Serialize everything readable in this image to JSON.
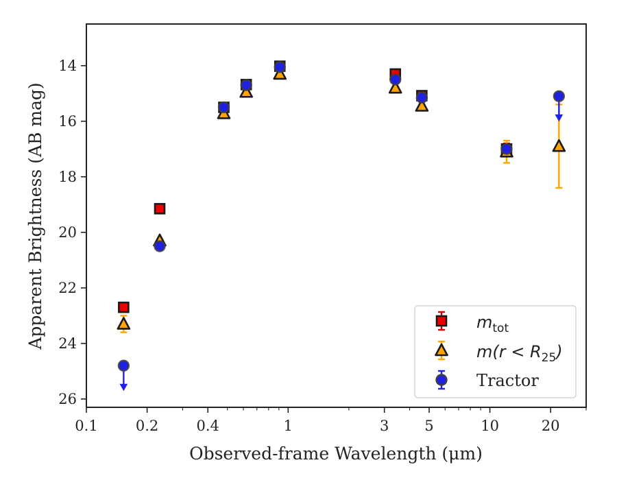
{
  "chart_data": {
    "type": "scatter",
    "title": "",
    "xlabel": "Observed-frame Wavelength (μm)",
    "ylabel": "Apparent Brightness (AB mag)",
    "x_scale": "log",
    "xlim": [
      0.1,
      30
    ],
    "ylim": [
      26.3,
      12.5
    ],
    "y_inverted": true,
    "x_ticks": [
      0.1,
      0.2,
      0.4,
      1,
      3,
      5,
      10,
      20
    ],
    "x_tick_labels": [
      "0.1",
      "0.2",
      "0.4",
      "1",
      "3",
      "5",
      "10",
      "20"
    ],
    "y_ticks": [
      14,
      16,
      18,
      20,
      22,
      24,
      26
    ],
    "y_tick_labels": [
      "14",
      "16",
      "18",
      "20",
      "22",
      "24",
      "26"
    ],
    "grid": false,
    "legend_position": "lower-right",
    "series": [
      {
        "name": "m_tot",
        "marker": "square",
        "fill": "#ee0000",
        "edge": "#1a1a1a",
        "error_color": "#dd0000",
        "points": [
          {
            "x": 0.153,
            "y": 22.7,
            "yerr": 0.15
          },
          {
            "x": 0.231,
            "y": 19.15,
            "yerr": 0.05
          },
          {
            "x": 0.48,
            "y": 15.5,
            "yerr": 0.04
          },
          {
            "x": 0.62,
            "y": 14.68,
            "yerr": 0.04
          },
          {
            "x": 0.91,
            "y": 14.02,
            "yerr": 0.04
          },
          {
            "x": 3.4,
            "y": 14.3,
            "yerr": 0.06
          },
          {
            "x": 4.6,
            "y": 15.08,
            "yerr": 0.06
          },
          {
            "x": 12.1,
            "y": 17.0,
            "yerr": 0.2
          }
        ]
      },
      {
        "name": "m(r < R_25)",
        "marker": "triangle",
        "fill": "#ffa500",
        "edge": "#1a1a1a",
        "error_color": "#ffa500",
        "points": [
          {
            "x": 0.153,
            "y": 23.3,
            "yerr": 0.3
          },
          {
            "x": 0.231,
            "y": 20.3,
            "yerr": 0.05
          },
          {
            "x": 0.48,
            "y": 15.72,
            "yerr": 0.04
          },
          {
            "x": 0.62,
            "y": 14.95,
            "yerr": 0.04
          },
          {
            "x": 0.91,
            "y": 14.3,
            "yerr": 0.04
          },
          {
            "x": 3.4,
            "y": 14.8,
            "yerr": 0.06
          },
          {
            "x": 4.6,
            "y": 15.45,
            "yerr": 0.06
          },
          {
            "x": 12.1,
            "y": 17.1,
            "yerr": 0.4
          },
          {
            "x": 22.0,
            "y": 16.9,
            "yerr": 1.5
          }
        ]
      },
      {
        "name": "Tractor",
        "marker": "circle",
        "fill": "#2020e0",
        "edge": "#404040",
        "error_color": "#2020ee",
        "points": [
          {
            "x": 0.153,
            "y": 24.8,
            "upper_limit": true
          },
          {
            "x": 0.231,
            "y": 20.5
          },
          {
            "x": 0.48,
            "y": 15.5
          },
          {
            "x": 0.62,
            "y": 14.7
          },
          {
            "x": 0.91,
            "y": 14.05
          },
          {
            "x": 3.4,
            "y": 14.5
          },
          {
            "x": 4.6,
            "y": 15.15
          },
          {
            "x": 12.1,
            "y": 17.0
          },
          {
            "x": 22.0,
            "y": 15.1,
            "upper_limit": true
          }
        ]
      }
    ],
    "legend": {
      "entries": [
        {
          "label_main": "m",
          "label_sub": "tot",
          "label_rest": "",
          "series": 0
        },
        {
          "label_main": "m(r < R",
          "label_sub": "25",
          "label_rest": ")",
          "series": 1
        },
        {
          "label_main": "Tractor",
          "label_sub": "",
          "label_rest": "",
          "series": 2
        }
      ]
    }
  }
}
